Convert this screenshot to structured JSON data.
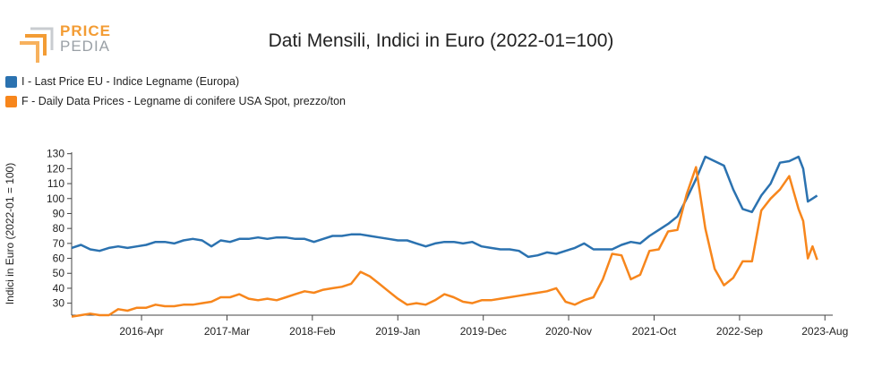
{
  "brand": {
    "line1": "PRICE",
    "line2": "PEDIA"
  },
  "colors": {
    "series1": "#2b72b0",
    "series2": "#f7861c",
    "logo_orange": "#f39c34",
    "logo_gray": "#9aa0a6"
  },
  "chart_data": {
    "type": "line",
    "title": "Dati Mensili, Indici in Euro (2022-01=100)",
    "ylabel": "Indici in Euro (2022-01 = 100)",
    "ylim": [
      22,
      131
    ],
    "yticks": [
      30,
      40,
      50,
      60,
      70,
      80,
      90,
      100,
      110,
      120,
      130
    ],
    "xlim": [
      2015.5,
      2023.667
    ],
    "xticks": [
      {
        "label": "2016-Apr",
        "value": 2016.25
      },
      {
        "label": "2017-Mar",
        "value": 2017.167
      },
      {
        "label": "2018-Feb",
        "value": 2018.083
      },
      {
        "label": "2019-Jan",
        "value": 2019.0
      },
      {
        "label": "2019-Dec",
        "value": 2019.917
      },
      {
        "label": "2020-Nov",
        "value": 2020.833
      },
      {
        "label": "2021-Oct",
        "value": 2021.75
      },
      {
        "label": "2022-Sep",
        "value": 2022.667
      },
      {
        "label": "2023-Aug",
        "value": 2023.583
      }
    ],
    "legend_placement": "top-left",
    "series": [
      {
        "name": "I - Last Price EU - Indice Legname (Europa)",
        "color": "#2b72b0",
        "points": [
          [
            2015.5,
            67
          ],
          [
            2015.6,
            69
          ],
          [
            2015.7,
            66
          ],
          [
            2015.8,
            65
          ],
          [
            2015.9,
            67
          ],
          [
            2016.0,
            68
          ],
          [
            2016.1,
            67
          ],
          [
            2016.2,
            68
          ],
          [
            2016.3,
            69
          ],
          [
            2016.4,
            71
          ],
          [
            2016.5,
            71
          ],
          [
            2016.6,
            70
          ],
          [
            2016.7,
            72
          ],
          [
            2016.8,
            73
          ],
          [
            2016.9,
            72
          ],
          [
            2017.0,
            68
          ],
          [
            2017.1,
            72
          ],
          [
            2017.2,
            71
          ],
          [
            2017.3,
            73
          ],
          [
            2017.4,
            73
          ],
          [
            2017.5,
            74
          ],
          [
            2017.6,
            73
          ],
          [
            2017.7,
            74
          ],
          [
            2017.8,
            74
          ],
          [
            2017.9,
            73
          ],
          [
            2018.0,
            73
          ],
          [
            2018.1,
            71
          ],
          [
            2018.2,
            73
          ],
          [
            2018.3,
            75
          ],
          [
            2018.4,
            75
          ],
          [
            2018.5,
            76
          ],
          [
            2018.6,
            76
          ],
          [
            2018.7,
            75
          ],
          [
            2018.8,
            74
          ],
          [
            2018.9,
            73
          ],
          [
            2019.0,
            72
          ],
          [
            2019.1,
            72
          ],
          [
            2019.2,
            70
          ],
          [
            2019.3,
            68
          ],
          [
            2019.4,
            70
          ],
          [
            2019.5,
            71
          ],
          [
            2019.6,
            71
          ],
          [
            2019.7,
            70
          ],
          [
            2019.8,
            71
          ],
          [
            2019.9,
            68
          ],
          [
            2020.0,
            67
          ],
          [
            2020.1,
            66
          ],
          [
            2020.2,
            66
          ],
          [
            2020.3,
            65
          ],
          [
            2020.4,
            61
          ],
          [
            2020.5,
            62
          ],
          [
            2020.6,
            64
          ],
          [
            2020.7,
            63
          ],
          [
            2020.8,
            65
          ],
          [
            2020.9,
            67
          ],
          [
            2021.0,
            70
          ],
          [
            2021.1,
            66
          ],
          [
            2021.2,
            66
          ],
          [
            2021.3,
            66
          ],
          [
            2021.4,
            69
          ],
          [
            2021.5,
            71
          ],
          [
            2021.6,
            70
          ],
          [
            2021.7,
            75
          ],
          [
            2021.8,
            79
          ],
          [
            2021.9,
            83
          ],
          [
            2022.0,
            88
          ],
          [
            2022.1,
            100
          ],
          [
            2022.2,
            113
          ],
          [
            2022.3,
            128
          ],
          [
            2022.4,
            125
          ],
          [
            2022.5,
            122
          ],
          [
            2022.6,
            106
          ],
          [
            2022.7,
            93
          ],
          [
            2022.8,
            91
          ],
          [
            2022.9,
            102
          ],
          [
            2023.0,
            110
          ],
          [
            2023.1,
            124
          ],
          [
            2023.2,
            125
          ],
          [
            2023.3,
            128
          ],
          [
            2023.35,
            120
          ],
          [
            2023.4,
            98
          ],
          [
            2023.45,
            100
          ],
          [
            2023.5,
            102
          ]
        ]
      },
      {
        "name": "F - Daily Data Prices - Legname di conifere USA Spot, prezzo/ton",
        "color": "#f7861c",
        "points": [
          [
            2015.5,
            21
          ],
          [
            2015.6,
            22
          ],
          [
            2015.7,
            23
          ],
          [
            2015.8,
            22
          ],
          [
            2015.9,
            22
          ],
          [
            2016.0,
            26
          ],
          [
            2016.1,
            25
          ],
          [
            2016.2,
            27
          ],
          [
            2016.3,
            27
          ],
          [
            2016.4,
            29
          ],
          [
            2016.5,
            28
          ],
          [
            2016.6,
            28
          ],
          [
            2016.7,
            29
          ],
          [
            2016.8,
            29
          ],
          [
            2016.9,
            30
          ],
          [
            2017.0,
            31
          ],
          [
            2017.1,
            34
          ],
          [
            2017.2,
            34
          ],
          [
            2017.3,
            36
          ],
          [
            2017.4,
            33
          ],
          [
            2017.5,
            32
          ],
          [
            2017.6,
            33
          ],
          [
            2017.7,
            32
          ],
          [
            2017.8,
            34
          ],
          [
            2017.9,
            36
          ],
          [
            2018.0,
            38
          ],
          [
            2018.1,
            37
          ],
          [
            2018.2,
            39
          ],
          [
            2018.3,
            40
          ],
          [
            2018.4,
            41
          ],
          [
            2018.5,
            43
          ],
          [
            2018.6,
            51
          ],
          [
            2018.7,
            48
          ],
          [
            2018.8,
            43
          ],
          [
            2018.9,
            38
          ],
          [
            2019.0,
            33
          ],
          [
            2019.1,
            29
          ],
          [
            2019.2,
            30
          ],
          [
            2019.3,
            29
          ],
          [
            2019.4,
            32
          ],
          [
            2019.5,
            36
          ],
          [
            2019.6,
            34
          ],
          [
            2019.7,
            31
          ],
          [
            2019.8,
            30
          ],
          [
            2019.9,
            32
          ],
          [
            2020.0,
            32
          ],
          [
            2020.1,
            33
          ],
          [
            2020.2,
            34
          ],
          [
            2020.3,
            35
          ],
          [
            2020.4,
            36
          ],
          [
            2020.5,
            37
          ],
          [
            2020.6,
            38
          ],
          [
            2020.7,
            40
          ],
          [
            2020.8,
            31
          ],
          [
            2020.9,
            29
          ],
          [
            2021.0,
            32
          ],
          [
            2021.1,
            34
          ],
          [
            2021.2,
            46
          ],
          [
            2021.3,
            63
          ],
          [
            2021.4,
            62
          ],
          [
            2021.5,
            46
          ],
          [
            2021.6,
            49
          ],
          [
            2021.7,
            65
          ],
          [
            2021.8,
            66
          ],
          [
            2021.9,
            78
          ],
          [
            2022.0,
            79
          ],
          [
            2022.1,
            103
          ],
          [
            2022.2,
            121
          ],
          [
            2022.3,
            80
          ],
          [
            2022.4,
            53
          ],
          [
            2022.5,
            42
          ],
          [
            2022.6,
            47
          ],
          [
            2022.7,
            58
          ],
          [
            2022.8,
            58
          ],
          [
            2022.9,
            92
          ],
          [
            2023.0,
            100
          ],
          [
            2023.1,
            106
          ],
          [
            2023.2,
            115
          ],
          [
            2023.3,
            93
          ],
          [
            2023.35,
            85
          ],
          [
            2023.4,
            60
          ],
          [
            2023.45,
            68
          ],
          [
            2023.5,
            59
          ]
        ]
      }
    ]
  }
}
